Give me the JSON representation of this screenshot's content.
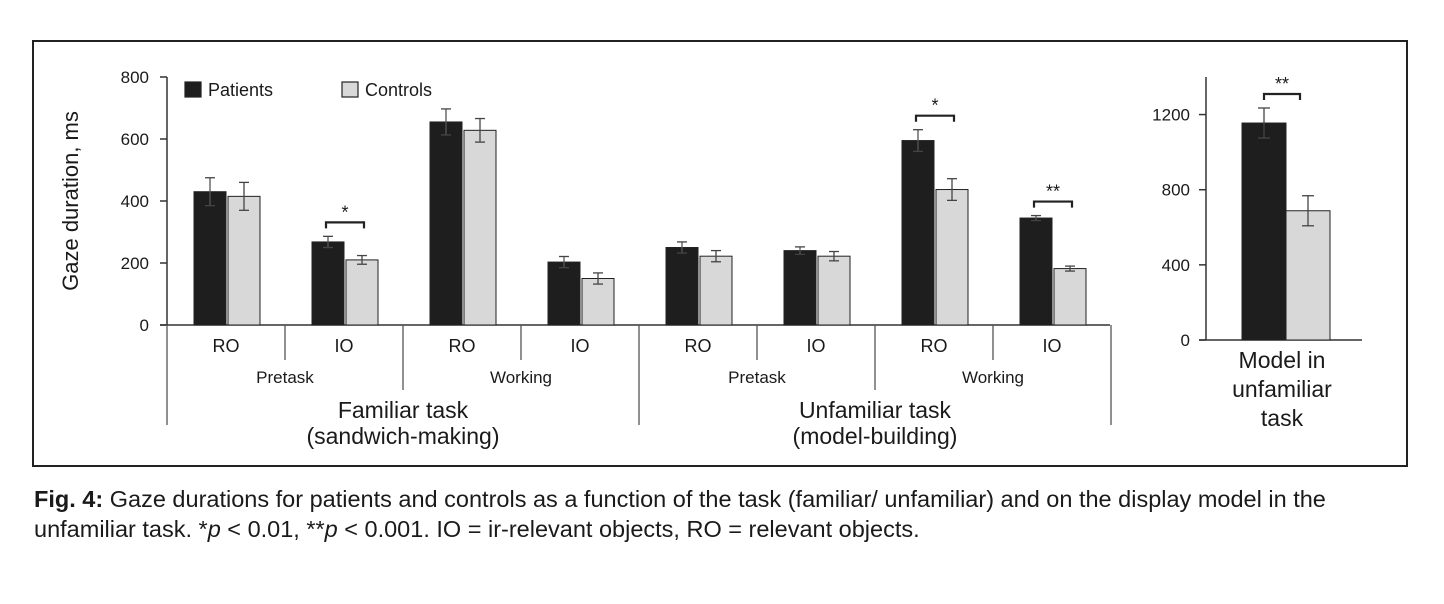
{
  "chart_data": [
    {
      "type": "bar",
      "ylabel": "Gaze duration, ms",
      "ylim": [
        0,
        800
      ],
      "yticks": [
        0,
        200,
        400,
        600,
        800
      ],
      "legend": {
        "placement": "top-left",
        "entries": [
          "Patients",
          "Controls"
        ]
      },
      "categories": [
        "RO",
        "IO",
        "RO",
        "IO",
        "RO",
        "IO",
        "RO",
        "IO"
      ],
      "phase_labels": [
        "Pretask",
        "Working",
        "Pretask",
        "Working"
      ],
      "task_labels": [
        [
          "Familiar task",
          "(sandwich-making)"
        ],
        [
          "Unfamiliar task",
          "(model-building)"
        ]
      ],
      "series": [
        {
          "name": "Patients",
          "color": "#1e1e1e",
          "values": [
            430,
            268,
            655,
            203,
            250,
            240,
            595,
            345
          ],
          "errors": [
            45,
            18,
            42,
            18,
            18,
            12,
            35,
            8
          ]
        },
        {
          "name": "Controls",
          "color": "#d8d8d8",
          "values": [
            415,
            210,
            628,
            150,
            222,
            222,
            437,
            182
          ],
          "errors": [
            45,
            14,
            38,
            18,
            18,
            15,
            35,
            8
          ]
        }
      ],
      "significance": [
        "",
        "*",
        "",
        "",
        "",
        "",
        "*",
        "**"
      ],
      "grid": false
    },
    {
      "type": "bar",
      "ylim": [
        0,
        1400
      ],
      "yticks": [
        0,
        400,
        800,
        1200
      ],
      "categories": [
        "Model in unfamiliar task"
      ],
      "category_label": [
        "Model in",
        "unfamiliar",
        "task"
      ],
      "series": [
        {
          "name": "Patients",
          "color": "#1e1e1e",
          "values": [
            1155
          ],
          "errors": [
            80
          ]
        },
        {
          "name": "Controls",
          "color": "#d8d8d8",
          "values": [
            688
          ],
          "errors": [
            80
          ]
        }
      ],
      "significance": [
        "**"
      ],
      "grid": false
    }
  ],
  "caption": {
    "label": "Fig. 4:",
    "text_1": " Gaze durations for patients and controls as a function of the task (familiar/ unfamiliar) and on the display model in the unfamiliar task. *",
    "p1": "p",
    "text_2": " < 0.01, **",
    "p2": "p",
    "text_3": " < 0.001. IO = ir-relevant objects, RO = relevant objects."
  }
}
